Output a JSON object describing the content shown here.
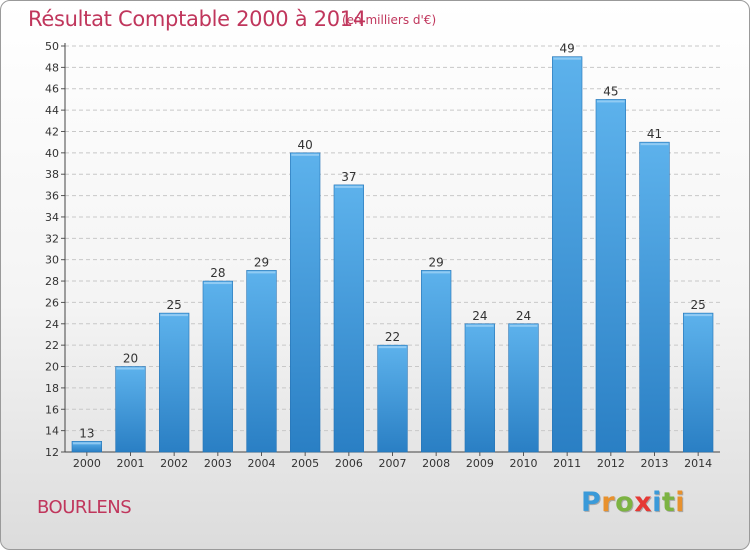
{
  "title": "Résultat Comptable 2000 à 2014",
  "subtitle": "(en milliers d'€)",
  "commune": "BOURLENS",
  "logo": {
    "letters": [
      {
        "char": "P",
        "color": "#3a9ad9"
      },
      {
        "char": "r",
        "color": "#e8912d"
      },
      {
        "char": "o",
        "color": "#7cb342"
      },
      {
        "char": "x",
        "color": "#e53935"
      },
      {
        "char": "i",
        "color": "#3a9ad9"
      },
      {
        "char": "t",
        "color": "#7cb342"
      },
      {
        "char": "i",
        "color": "#e8912d"
      }
    ]
  },
  "chart_data": {
    "type": "bar",
    "categories": [
      "2000",
      "2001",
      "2002",
      "2003",
      "2004",
      "2005",
      "2006",
      "2007",
      "2008",
      "2009",
      "2010",
      "2011",
      "2012",
      "2013",
      "2014"
    ],
    "values": [
      13,
      20,
      25,
      28,
      29,
      40,
      37,
      22,
      29,
      24,
      24,
      49,
      45,
      41,
      25
    ],
    "title": "Résultat Comptable 2000 à 2014",
    "xlabel": "",
    "ylabel": "",
    "ylim": [
      12,
      50
    ],
    "yticks": [
      12,
      14,
      16,
      18,
      20,
      22,
      24,
      26,
      28,
      30,
      32,
      34,
      36,
      38,
      40,
      42,
      44,
      46,
      48,
      50
    ],
    "grid": true,
    "bar_color": "#3f9be0"
  }
}
